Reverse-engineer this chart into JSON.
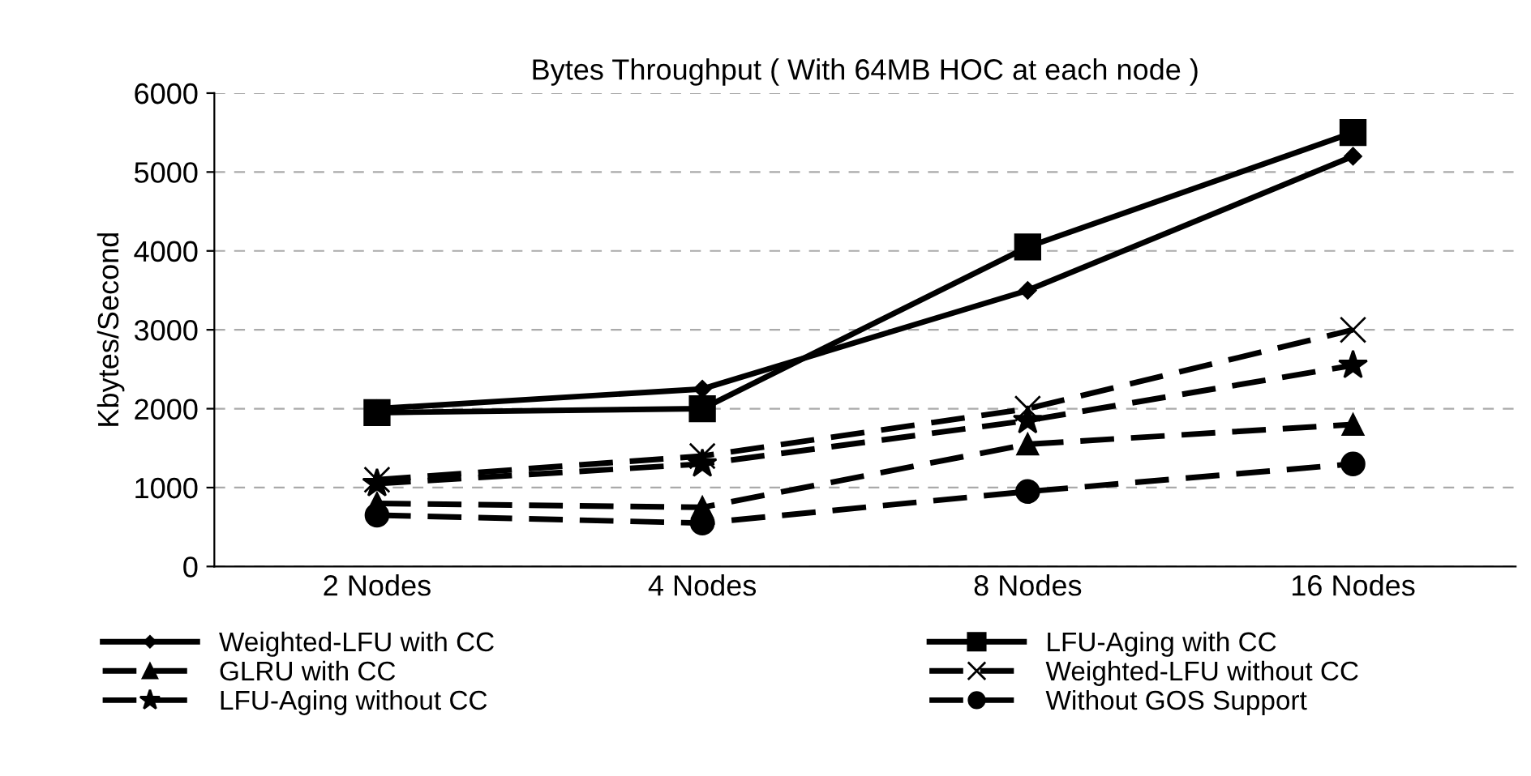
{
  "chart_data": {
    "type": "line",
    "title": "Bytes Throughput ( With 64MB HOC at each node )",
    "ylabel": "Kbytes/Second",
    "categories": [
      "2 Nodes",
      "4 Nodes",
      "8 Nodes",
      "16 Nodes"
    ],
    "ylim": [
      0,
      6000
    ],
    "yticks": [
      0,
      1000,
      2000,
      3000,
      4000,
      5000,
      6000
    ],
    "grid": "y",
    "legend": "bottom",
    "series": [
      {
        "name": "Weighted-LFU with CC",
        "color": "#000000",
        "marker": "diamond",
        "line_style": "solid",
        "values": [
          2000,
          2250,
          3500,
          5200
        ]
      },
      {
        "name": "LFU-Aging with CC",
        "color": "#000000",
        "marker": "square",
        "line_style": "solid",
        "values": [
          1950,
          2000,
          4050,
          5500
        ]
      },
      {
        "name": "GLRU with CC",
        "color": "#000000",
        "marker": "triangle",
        "line_style": "dashed",
        "values": [
          800,
          750,
          1550,
          1800
        ]
      },
      {
        "name": "Weighted-LFU without CC",
        "color": "#000000",
        "marker": "cross",
        "line_style": "dashed",
        "values": [
          1100,
          1400,
          2000,
          3000
        ]
      },
      {
        "name": "LFU-Aging without CC",
        "color": "#000000",
        "marker": "star",
        "line_style": "dashed",
        "values": [
          1050,
          1300,
          1850,
          2550
        ]
      },
      {
        "name": "Without GOS Support",
        "color": "#000000",
        "marker": "circle",
        "line_style": "dashed",
        "values": [
          650,
          550,
          950,
          1300
        ]
      }
    ]
  }
}
